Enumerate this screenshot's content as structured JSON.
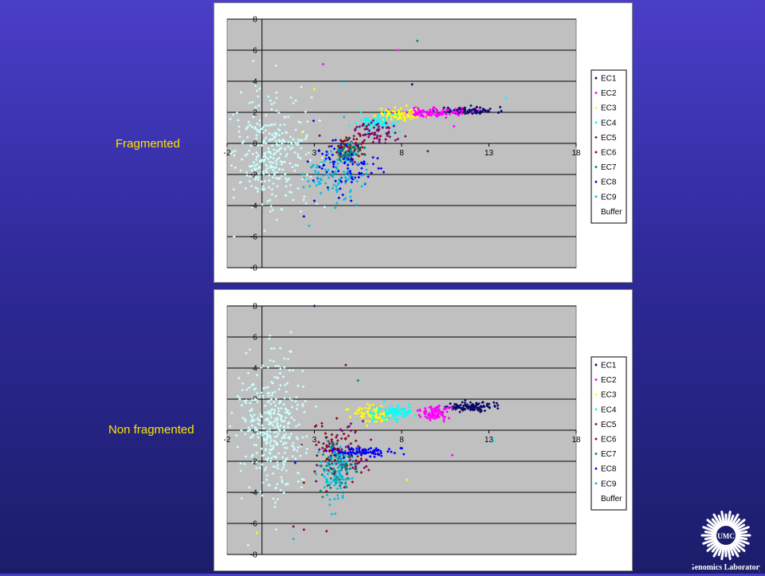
{
  "labels": {
    "top": "Fragmented",
    "bottom": "Non fragmented"
  },
  "logo": {
    "text": "Genomics Laboratory",
    "seal": "UMC"
  },
  "colors": {
    "EC1": "#0a0a6a",
    "EC2": "#ff00ff",
    "EC3": "#ffff00",
    "EC4": "#00ffff",
    "EC5": "#7a0a6a",
    "EC6": "#8a0a0a",
    "EC7": "#008080",
    "EC8": "#0000ff",
    "EC9": "#00c0e0",
    "Buffer": "#c8ffff"
  },
  "chart_data": [
    {
      "type": "scatter",
      "title": "",
      "xlim": [
        -2,
        18
      ],
      "ylim": [
        -8,
        8
      ],
      "xticks": [
        -2,
        3,
        8,
        13,
        18
      ],
      "yticks": [
        8,
        6,
        4,
        2,
        0,
        -2,
        -4,
        -6,
        -8
      ],
      "grid": true,
      "legend": "right",
      "series": [
        {
          "name": "EC1",
          "cx": 11.8,
          "cy": 2.1,
          "sx": 0.8,
          "sy": 0.12,
          "n": 90,
          "out": [
            [
              8.6,
              3.8
            ],
            [
              12.5,
              2.3
            ]
          ]
        },
        {
          "name": "EC2",
          "cx": 9.8,
          "cy": 2.0,
          "sx": 1.0,
          "sy": 0.15,
          "n": 90,
          "out": [
            [
              7.8,
              6.0
            ],
            [
              3.5,
              5.1
            ],
            [
              11,
              1.1
            ]
          ]
        },
        {
          "name": "EC3",
          "cx": 7.7,
          "cy": 1.8,
          "sx": 0.6,
          "sy": 0.2,
          "n": 70,
          "out": [
            [
              2.3,
              0.7
            ],
            [
              3,
              3.5
            ]
          ]
        },
        {
          "name": "EC4",
          "cx": 6.6,
          "cy": 1.3,
          "sx": 0.6,
          "sy": 0.3,
          "n": 70,
          "out": [
            [
              4.7,
              3.9
            ],
            [
              14,
              2.9
            ]
          ]
        },
        {
          "name": "EC5",
          "cx": 6.4,
          "cy": 0.7,
          "sx": 0.6,
          "sy": 0.35,
          "n": 70,
          "out": [
            [
              9.5,
              -0.5
            ],
            [
              3.3,
              0.5
            ]
          ]
        },
        {
          "name": "EC6",
          "cx": 4.9,
          "cy": -0.4,
          "sx": 0.5,
          "sy": 0.4,
          "n": 70,
          "out": [
            [
              6,
              1.1
            ],
            [
              4.5,
              -0.5
            ]
          ]
        },
        {
          "name": "EC7",
          "cx": 4.9,
          "cy": -0.6,
          "sx": 0.4,
          "sy": 0.4,
          "n": 60,
          "out": [
            [
              8.9,
              6.6
            ]
          ]
        },
        {
          "name": "EC8",
          "cx": 4.8,
          "cy": -1.4,
          "sx": 0.9,
          "sy": 0.9,
          "n": 90,
          "out": [
            [
              2.4,
              -4.7
            ],
            [
              3.0,
              -3.7
            ]
          ]
        },
        {
          "name": "EC9",
          "cx": 4.2,
          "cy": -2.1,
          "sx": 0.9,
          "sy": 0.8,
          "n": 90,
          "out": [
            [
              2.7,
              -5.3
            ],
            [
              4.7,
              1.7
            ]
          ]
        },
        {
          "name": "Buffer",
          "cx": 0.6,
          "cy": -0.8,
          "sx": 1.1,
          "sy": 1.8,
          "n": 320,
          "out": [
            [
              -0.5,
              5.3
            ],
            [
              0.8,
              5.0
            ],
            [
              -1.6,
              -6.0
            ]
          ]
        }
      ]
    },
    {
      "type": "scatter",
      "title": "",
      "xlim": [
        -2,
        18
      ],
      "ylim": [
        -8,
        8
      ],
      "xticks": [
        -2,
        3,
        8,
        13,
        18
      ],
      "yticks": [
        8,
        6,
        4,
        2,
        0,
        -2,
        -4,
        -6,
        -8
      ],
      "grid": true,
      "legend": "right",
      "series": [
        {
          "name": "EC1",
          "cx": 12.0,
          "cy": 1.5,
          "sx": 0.7,
          "sy": 0.15,
          "n": 110,
          "out": [
            [
              3,
              8
            ]
          ]
        },
        {
          "name": "EC2",
          "cx": 9.9,
          "cy": 1.1,
          "sx": 0.5,
          "sy": 0.2,
          "n": 90,
          "out": [
            [
              10.9,
              -1.6
            ]
          ]
        },
        {
          "name": "EC3",
          "cx": 6.3,
          "cy": 1.0,
          "sx": 0.6,
          "sy": 0.3,
          "n": 80,
          "out": [
            [
              8.3,
              -3.2
            ],
            [
              -0.3,
              -6.6
            ]
          ]
        },
        {
          "name": "EC4",
          "cx": 7.5,
          "cy": 1.1,
          "sx": 0.6,
          "sy": 0.3,
          "n": 90,
          "out": [
            [
              13.3,
              -0.7
            ]
          ]
        },
        {
          "name": "EC5",
          "cx": 4.6,
          "cy": -1.4,
          "sx": 0.8,
          "sy": 0.9,
          "n": 70,
          "out": [
            [
              3.7,
              -6.5
            ],
            [
              1.8,
              -6.2
            ]
          ]
        },
        {
          "name": "EC6",
          "cx": 4.3,
          "cy": -1.4,
          "sx": 0.8,
          "sy": 1.0,
          "n": 70,
          "out": [
            [
              4.8,
              4.2
            ],
            [
              2.4,
              -6.4
            ]
          ]
        },
        {
          "name": "EC7",
          "cx": 4.5,
          "cy": -2.5,
          "sx": 0.5,
          "sy": 0.8,
          "n": 80,
          "out": [
            [
              5.5,
              3.2
            ]
          ]
        },
        {
          "name": "EC8",
          "cx": 5.6,
          "cy": -1.4,
          "sx": 0.9,
          "sy": 0.15,
          "n": 80,
          "out": [
            [
              1.9,
              -2.1
            ]
          ]
        },
        {
          "name": "EC9",
          "cx": 4.2,
          "cy": -2.8,
          "sx": 0.5,
          "sy": 0.9,
          "n": 80,
          "out": [
            [
              4,
              -5.4
            ],
            [
              1.8,
              -7
            ]
          ]
        },
        {
          "name": "Buffer",
          "cx": 0.6,
          "cy": 0.2,
          "sx": 1.0,
          "sy": 2.3,
          "n": 380,
          "out": [
            [
              0.4,
              5.9
            ],
            [
              -1.1,
              3.0
            ],
            [
              -0.8,
              -7.4
            ]
          ]
        }
      ]
    }
  ]
}
